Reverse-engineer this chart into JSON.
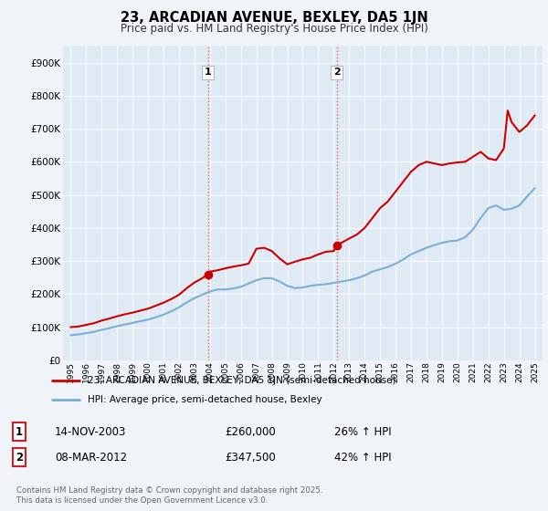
{
  "title": "23, ARCADIAN AVENUE, BEXLEY, DA5 1JN",
  "subtitle": "Price paid vs. HM Land Registry's House Price Index (HPI)",
  "background_color": "#f0f4f8",
  "plot_bg_color": "#e0eaf4",
  "ylim": [
    0,
    950000
  ],
  "yticks": [
    0,
    100000,
    200000,
    300000,
    400000,
    500000,
    600000,
    700000,
    800000,
    900000
  ],
  "ytick_labels": [
    "£0",
    "£100K",
    "£200K",
    "£300K",
    "£400K",
    "£500K",
    "£600K",
    "£700K",
    "£800K",
    "£900K"
  ],
  "sale1_x": 2003.87,
  "sale1_y": 260000,
  "sale2_x": 2012.19,
  "sale2_y": 347500,
  "red_color": "#cc0000",
  "blue_color": "#7aafd4",
  "dashed_color": "#dd6666",
  "legend_red": "23, ARCADIAN AVENUE, BEXLEY, DA5 1JN (semi-detached house)",
  "legend_blue": "HPI: Average price, semi-detached house, Bexley",
  "table_row1": [
    "1",
    "14-NOV-2003",
    "£260,000",
    "26% ↑ HPI"
  ],
  "table_row2": [
    "2",
    "08-MAR-2012",
    "£347,500",
    "42% ↑ HPI"
  ],
  "footer": "Contains HM Land Registry data © Crown copyright and database right 2025.\nThis data is licensed under the Open Government Licence v3.0.",
  "xmin": 1994.5,
  "xmax": 2025.5,
  "hpi_years": [
    1995,
    1995.5,
    1996,
    1996.5,
    1997,
    1997.5,
    1998,
    1998.5,
    1999,
    1999.5,
    2000,
    2000.5,
    2001,
    2001.5,
    2002,
    2002.5,
    2003,
    2003.5,
    2004,
    2004.5,
    2005,
    2005.5,
    2006,
    2006.5,
    2007,
    2007.5,
    2008,
    2008.5,
    2009,
    2009.5,
    2010,
    2010.5,
    2011,
    2011.5,
    2012,
    2012.5,
    2013,
    2013.5,
    2014,
    2014.5,
    2015,
    2015.5,
    2016,
    2016.5,
    2017,
    2017.5,
    2018,
    2018.5,
    2019,
    2019.5,
    2020,
    2020.5,
    2021,
    2021.5,
    2022,
    2022.5,
    2023,
    2023.5,
    2024,
    2024.5,
    2025
  ],
  "hpi_vals": [
    76000,
    78000,
    82000,
    86000,
    92000,
    97000,
    103000,
    108000,
    113000,
    118000,
    123000,
    130000,
    138000,
    148000,
    160000,
    175000,
    188000,
    198000,
    208000,
    214000,
    214000,
    217000,
    222000,
    232000,
    242000,
    248000,
    248000,
    238000,
    225000,
    218000,
    220000,
    225000,
    228000,
    230000,
    234000,
    238000,
    242000,
    248000,
    256000,
    268000,
    275000,
    282000,
    292000,
    305000,
    320000,
    330000,
    340000,
    348000,
    355000,
    360000,
    362000,
    372000,
    395000,
    430000,
    460000,
    468000,
    455000,
    458000,
    468000,
    495000,
    520000
  ],
  "red_years": [
    1995,
    1995.5,
    1996,
    1996.5,
    1997,
    1997.5,
    1998,
    1998.5,
    1999,
    1999.5,
    2000,
    2000.5,
    2001,
    2001.5,
    2002,
    2002.5,
    2003,
    2003.5,
    2003.87,
    2004,
    2004.5,
    2005,
    2005.5,
    2006,
    2006.5,
    2007,
    2007.5,
    2008,
    2008.5,
    2009,
    2009.5,
    2010,
    2010.5,
    2011,
    2011.5,
    2012,
    2012.19,
    2012.5,
    2013,
    2013.5,
    2014,
    2014.5,
    2015,
    2015.5,
    2016,
    2016.5,
    2017,
    2017.5,
    2018,
    2018.5,
    2019,
    2019.5,
    2020,
    2020.5,
    2021,
    2021.5,
    2022,
    2022.5,
    2023,
    2023.25,
    2023.5,
    2024,
    2024.5,
    2025
  ],
  "red_vals": [
    100000,
    102000,
    107000,
    112000,
    120000,
    126000,
    133000,
    139000,
    144000,
    150000,
    156000,
    165000,
    174000,
    185000,
    198000,
    218000,
    235000,
    248000,
    260000,
    268000,
    272000,
    278000,
    283000,
    287000,
    292000,
    337000,
    340000,
    330000,
    308000,
    290000,
    298000,
    305000,
    310000,
    320000,
    328000,
    330000,
    347500,
    355000,
    368000,
    380000,
    400000,
    430000,
    460000,
    480000,
    510000,
    540000,
    570000,
    590000,
    600000,
    595000,
    590000,
    595000,
    598000,
    600000,
    615000,
    630000,
    610000,
    605000,
    640000,
    755000,
    720000,
    690000,
    710000,
    740000
  ]
}
